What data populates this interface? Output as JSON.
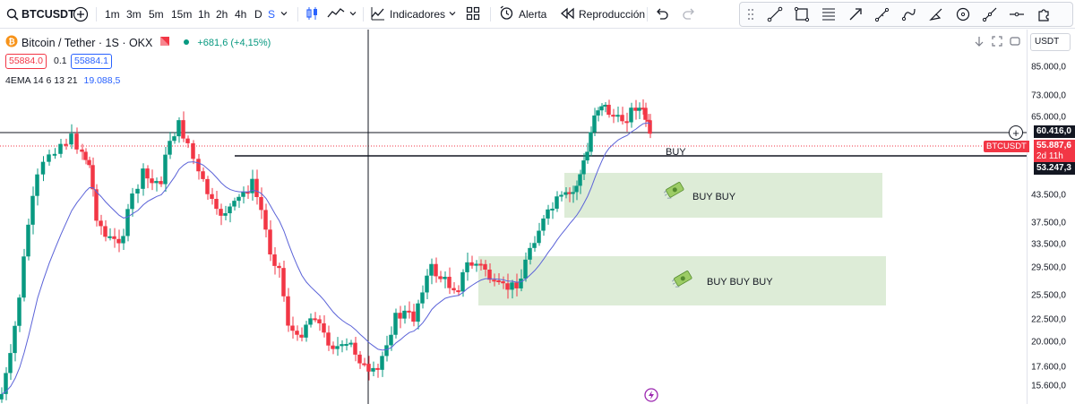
{
  "toolbar": {
    "symbol": "BTCUSDT",
    "timeframes": [
      "1m",
      "3m",
      "5m",
      "15m",
      "1h",
      "2h",
      "4h",
      "D",
      "S"
    ],
    "active_timeframe": "S",
    "indicators_label": "Indicadores",
    "alert_label": "Alerta",
    "replay_label": "Reproducción",
    "icons": {
      "search": "search-icon",
      "add": "add-symbol-icon",
      "candles": "candles-icon",
      "line": "line-chart-icon",
      "indicators": "indicators-icon",
      "layout": "layout-grid-icon",
      "alert": "alarm-icon",
      "replay": "replay-icon",
      "undo": "undo-icon",
      "redo": "redo-icon"
    }
  },
  "drawing_tools": [
    "trend-line-icon",
    "rectangle-icon",
    "fib-icon",
    "arrow-icon",
    "pencil-icon",
    "path-icon",
    "brush-icon",
    "circle-icon",
    "ray-icon",
    "horizontal-line-icon",
    "puzzle-icon"
  ],
  "legend": {
    "title": "Bitcoin / Tether · 1S · OKX",
    "change": "+681,6 (+4,15%)",
    "bid": "55884.0",
    "spread": "0.1",
    "ask": "55884.1",
    "ema_label": "4EMA 14 6 13 21",
    "ema_value": "19.088,5"
  },
  "chart": {
    "annotations": {
      "buy_line": "BUY",
      "zone1": "BUY BUY",
      "zone2": "BUY BUY BUY"
    },
    "colors": {
      "up": "#089981",
      "down": "#f23645",
      "ema": "#5b63d8",
      "zone": "#d9ead3",
      "crosshair": "#131722"
    }
  },
  "axis": {
    "currency": "USDT",
    "ticks": [
      "85.000,0",
      "73.000,0",
      "65.000,0",
      "43.500,0",
      "37.500,0",
      "33.500,0",
      "29.500,0",
      "25.500,0",
      "22.500,0",
      "20.000,0",
      "17.600,0",
      "15.600,0"
    ],
    "crosshair_price": "60.416,0",
    "last_symbol": "BTCUSDT",
    "last_price": "55.887,6",
    "countdown": "2d 11h",
    "line_price": "53.247,3"
  }
}
